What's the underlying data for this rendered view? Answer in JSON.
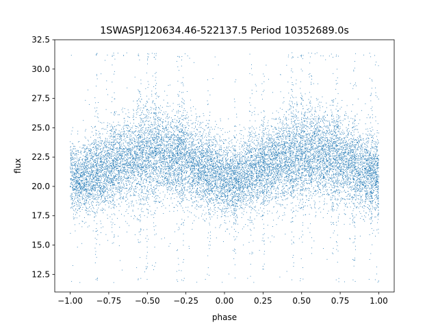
{
  "chart_data": {
    "type": "scatter",
    "title": "1SWASPJ120634.46-522137.5 Period 10352689.0s",
    "xlabel": "phase",
    "ylabel": "flux",
    "xlim": [
      -1.1,
      1.1
    ],
    "ylim": [
      11.0,
      32.5
    ],
    "xticks": [
      -1.0,
      -0.75,
      -0.5,
      -0.25,
      0.0,
      0.25,
      0.5,
      0.75,
      1.0
    ],
    "xtick_labels": [
      "−1.00",
      "−0.75",
      "−0.50",
      "−0.25",
      "0.00",
      "0.25",
      "0.50",
      "0.75",
      "1.00"
    ],
    "yticks": [
      12.5,
      15.0,
      17.5,
      20.0,
      22.5,
      25.0,
      27.5,
      30.0,
      32.5
    ],
    "ytick_labels": [
      "12.5",
      "15.0",
      "17.5",
      "20.0",
      "22.5",
      "25.0",
      "27.5",
      "30.0",
      "32.5"
    ],
    "grid": false,
    "legend": "none",
    "point_color": "#1f77b4",
    "x_range_data": [
      -1.0,
      1.0
    ],
    "band_profile": {
      "phase": [
        0.0,
        0.05,
        0.1,
        0.15,
        0.2,
        0.25,
        0.3,
        0.35,
        0.4,
        0.45,
        0.5,
        0.55,
        0.6,
        0.65,
        0.7,
        0.75,
        0.8,
        0.85,
        0.9,
        0.95,
        1.0
      ],
      "median_flux": [
        20.8,
        20.5,
        20.7,
        21.0,
        21.3,
        21.6,
        21.9,
        22.1,
        22.3,
        22.5,
        22.6,
        22.7,
        22.8,
        22.6,
        22.4,
        22.2,
        22.0,
        21.6,
        21.3,
        21.1,
        20.8
      ],
      "spread": [
        1.6,
        1.4,
        1.5,
        1.6,
        1.7,
        1.7,
        1.8,
        1.8,
        1.9,
        2.0,
        2.0,
        2.0,
        1.9,
        1.9,
        1.8,
        1.8,
        1.7,
        1.7,
        1.6,
        1.6,
        1.6
      ]
    },
    "n_points": 16000
  }
}
